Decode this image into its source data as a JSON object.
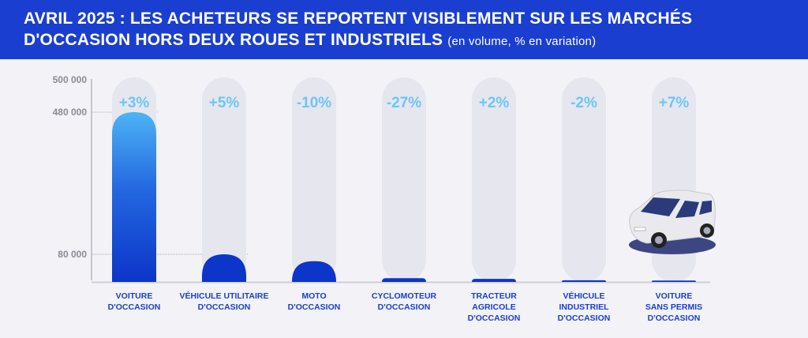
{
  "header": {
    "title_line1": "AVRIL 2025 : LES ACHETEURS SE REPORTENT VISIBLEMENT SUR LES MARCHÉS",
    "title_line2": "D'OCCASION HORS DEUX ROUES ET INDUSTRIELS",
    "subtitle": "(en volume, % en variation)"
  },
  "chart_data": {
    "type": "bar",
    "title": "AVRIL 2025 : LES ACHETEURS SE REPORTENT VISIBLEMENT SUR LES MARCHÉS D'OCCASION HORS DEUX ROUES ET INDUSTRIELS (en volume, % en variation)",
    "categories": [
      "VOITURE\nD'OCCASION",
      "VÉHICULE UTILITAIRE\nD'OCCASION",
      "MOTO\nD'OCCASION",
      "CYCLOMOTEUR\nD'OCCASION",
      "TRACTEUR\nAGRICOLE\nD'OCCASION",
      "VÉHICULE\nINDUSTRIEL\nD'OCCASION",
      "VOITURE\nSANS PERMIS\nD'OCCASION"
    ],
    "values": [
      480000,
      80000,
      60000,
      11000,
      9000,
      5000,
      4000
    ],
    "variations": [
      "+3%",
      "+5%",
      "-10%",
      "-27%",
      "+2%",
      "-2%",
      "+7%"
    ],
    "yticks": [
      "500 000",
      "480 000",
      "80 000"
    ],
    "ylim": [
      0,
      500000
    ],
    "axis_break": true,
    "colors": {
      "bar_top": "#4db4f5",
      "bar": "#0c35c9",
      "track": "#e6e6ee",
      "pct": "#6cc6f5"
    }
  }
}
